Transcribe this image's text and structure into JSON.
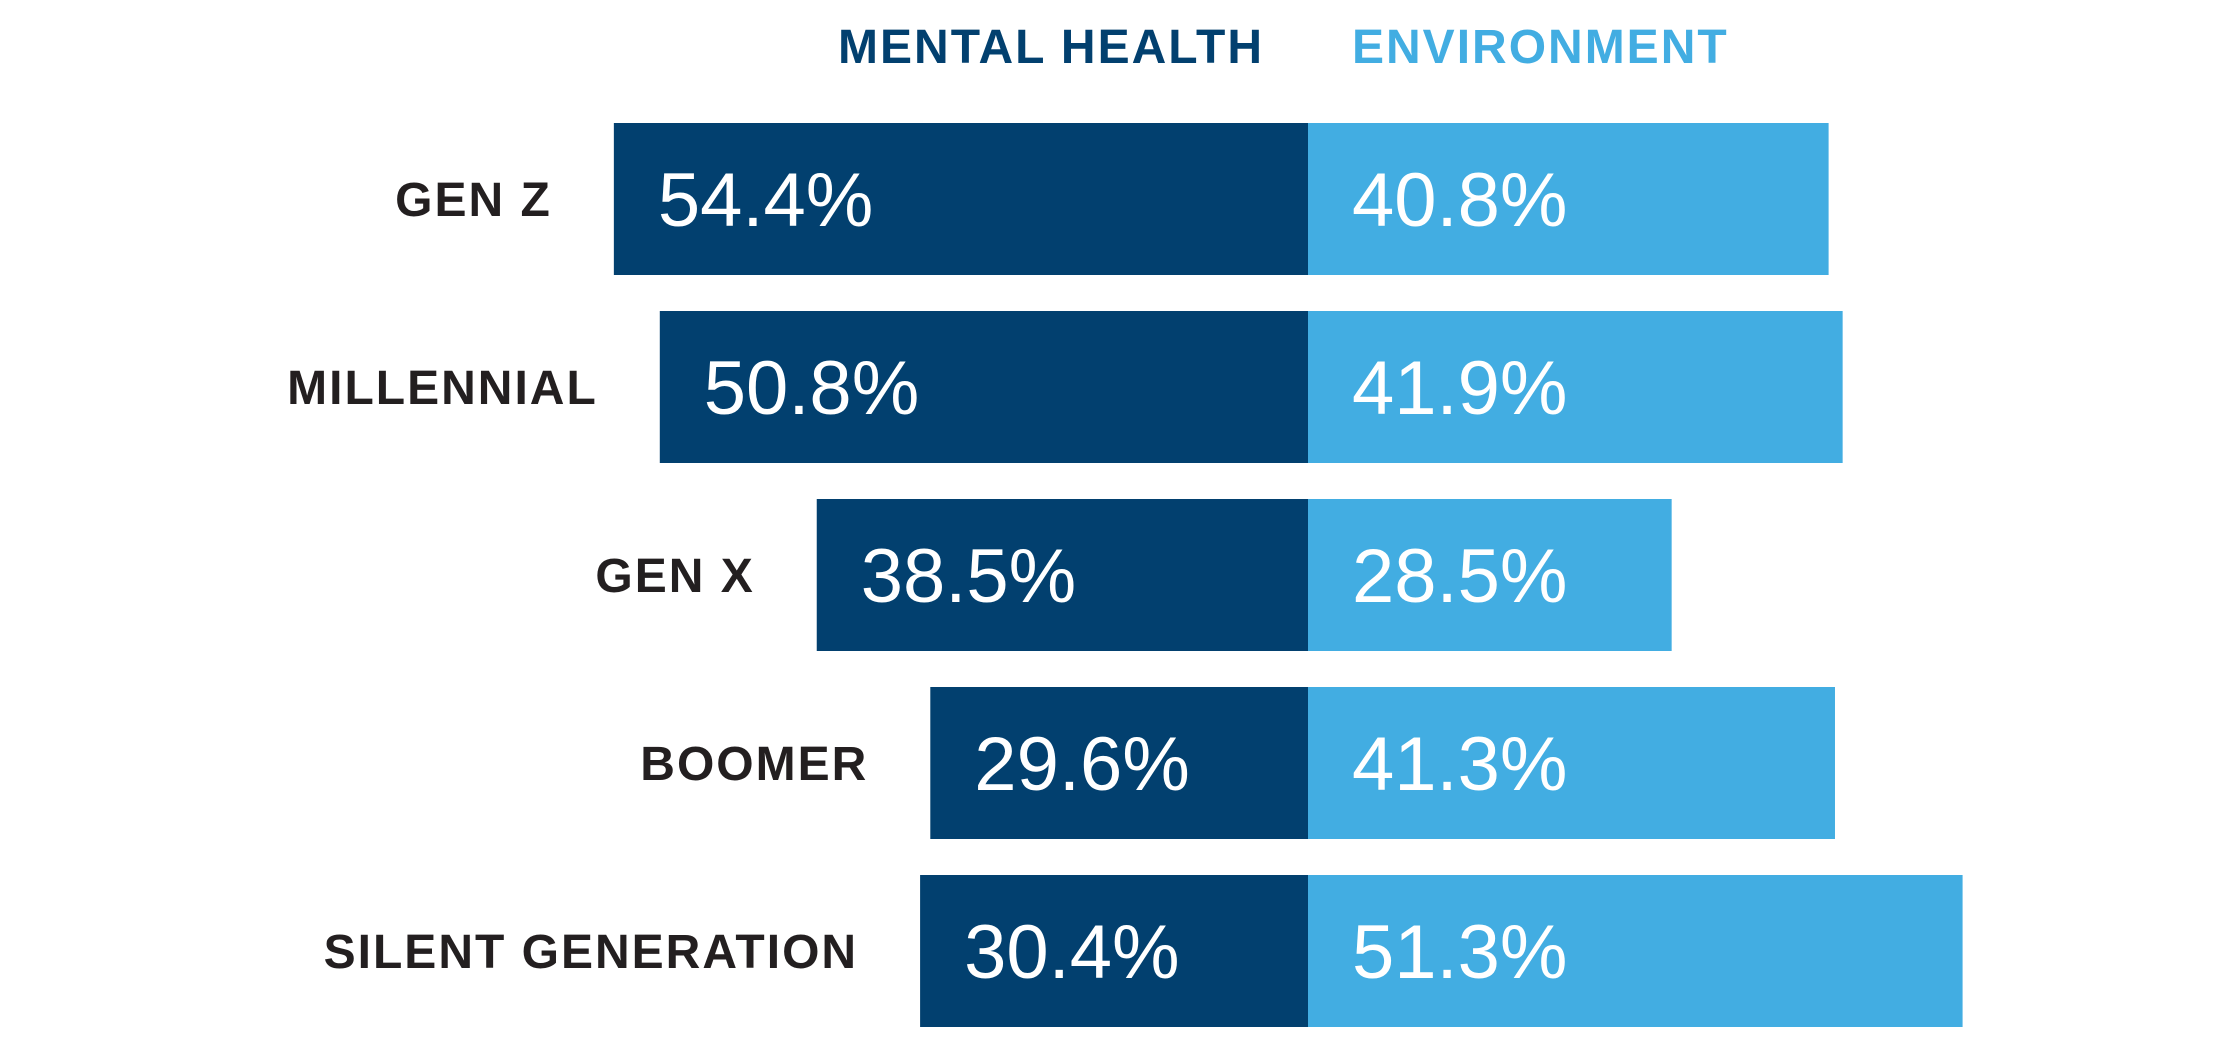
{
  "chart_data": {
    "type": "bar",
    "orientation": "horizontal-diverging",
    "title": "",
    "xlabel": "",
    "ylabel": "",
    "categories": [
      "GEN Z",
      "MILLENNIAL",
      "GEN X",
      "BOOMER",
      "SILENT GENERATION"
    ],
    "series": [
      {
        "name": "MENTAL HEALTH",
        "values": [
          54.4,
          50.8,
          38.5,
          29.6,
          30.4
        ],
        "labels": [
          "54.4%",
          "50.8%",
          "38.5%",
          "29.6%",
          "30.4%"
        ],
        "color": "#02406f"
      },
      {
        "name": "ENVIRONMENT",
        "values": [
          40.8,
          41.9,
          28.5,
          41.3,
          51.3
        ],
        "labels": [
          "40.8%",
          "41.9%",
          "28.5%",
          "41.3%",
          "51.3%"
        ],
        "color": "#42ade2"
      }
    ],
    "legend": "top",
    "grid": false
  }
}
